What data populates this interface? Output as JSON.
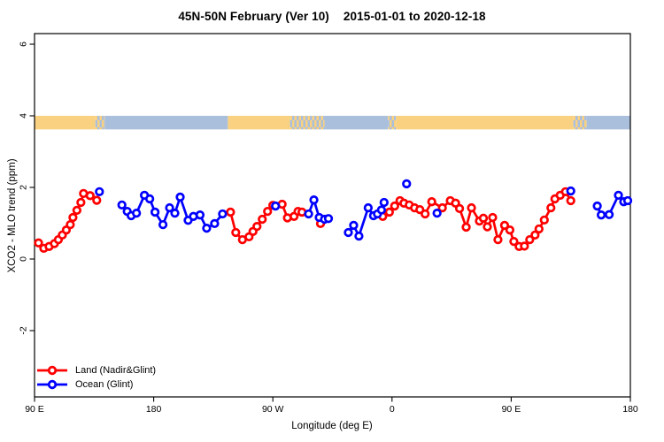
{
  "title": {
    "main": "45N-50N February (Ver 10)",
    "range": "2015-01-01 to 2020-12-18"
  },
  "legend": [
    {
      "label": "Land (Nadir&Glint)",
      "color": "#ff0000"
    },
    {
      "label": "Ocean (Glint)",
      "color": "#0000ff"
    }
  ],
  "chart_data": {
    "type": "line",
    "title": "45N-50N February (Ver 10)  2015-01-01 to 2020-12-18",
    "xlabel": "Longitude (deg E)",
    "ylabel": "XCO2 - MLO trend (ppm)",
    "marker_style": "open-circle",
    "grid": false,
    "x_axis": {
      "description": "longitude, starting at 90E and wrapping eastward around the globe to 180",
      "range_deg_from_90E": [
        0,
        450
      ],
      "ticks_deg_from_90E": [
        0,
        90,
        180,
        270,
        360,
        450
      ],
      "tick_labels": [
        "90 E",
        "180",
        "90 W",
        "0",
        "90 E",
        "180"
      ]
    },
    "y_axis": {
      "range": [
        -4.0,
        6.3
      ],
      "ticks": [
        -2,
        0,
        2,
        4,
        6
      ]
    },
    "map_band": {
      "description": "45N-50N land/ocean strip drawn near y=3.8 ppm",
      "y_top": 4.0,
      "y_bottom": 3.62,
      "land_color": "#f9d180",
      "ocean_color": "#aabfdc",
      "segments": [
        {
          "from": 0,
          "to": 46,
          "type": "land"
        },
        {
          "from": 46,
          "to": 53,
          "type": "mixed"
        },
        {
          "from": 53,
          "to": 146,
          "type": "ocean"
        },
        {
          "from": 146,
          "to": 193,
          "type": "land"
        },
        {
          "from": 193,
          "to": 219,
          "type": "mixed"
        },
        {
          "from": 219,
          "to": 267,
          "type": "ocean"
        },
        {
          "from": 267,
          "to": 273,
          "type": "mixed"
        },
        {
          "from": 273,
          "to": 407,
          "type": "land"
        },
        {
          "from": 407,
          "to": 417,
          "type": "mixed"
        },
        {
          "from": 417,
          "to": 450,
          "type": "ocean"
        }
      ]
    },
    "series": [
      {
        "name": "Land (Nadir&Glint)",
        "color": "#ff0000",
        "segments": [
          [
            [
              3,
              0.45
            ],
            [
              7,
              0.3
            ],
            [
              11,
              0.35
            ],
            [
              15,
              0.43
            ],
            [
              18,
              0.54
            ],
            [
              21,
              0.67
            ],
            [
              24,
              0.81
            ],
            [
              27,
              0.96
            ],
            [
              29,
              1.16
            ],
            [
              32,
              1.36
            ],
            [
              35,
              1.58
            ],
            [
              37,
              1.83
            ],
            [
              42,
              1.77
            ],
            [
              47,
              1.64
            ]
          ],
          [
            [
              148,
              1.31
            ],
            [
              152,
              0.74
            ],
            [
              157,
              0.54
            ],
            [
              162,
              0.62
            ],
            [
              165,
              0.77
            ],
            [
              168,
              0.91
            ],
            [
              172,
              1.11
            ],
            [
              176,
              1.33
            ],
            [
              180,
              1.5
            ],
            [
              187,
              1.53
            ],
            [
              191,
              1.15
            ],
            [
              196,
              1.19
            ],
            [
              199,
              1.33
            ],
            [
              202,
              1.31
            ]
          ],
          [
            [
              216,
              0.99
            ]
          ],
          [
            [
              263,
              1.19
            ],
            [
              268,
              1.31
            ],
            [
              272,
              1.48
            ],
            [
              276,
              1.63
            ],
            [
              279,
              1.56
            ],
            [
              283,
              1.51
            ],
            [
              287,
              1.43
            ],
            [
              291,
              1.38
            ],
            [
              295,
              1.26
            ],
            [
              300,
              1.6
            ],
            [
              308,
              1.43
            ],
            [
              314,
              1.63
            ],
            [
              318,
              1.56
            ],
            [
              321,
              1.41
            ],
            [
              326,
              0.89
            ],
            [
              330,
              1.43
            ],
            [
              336,
              1.06
            ],
            [
              339,
              1.14
            ],
            [
              342,
              0.9
            ],
            [
              346,
              1.16
            ],
            [
              350,
              0.54
            ],
            [
              355,
              0.94
            ],
            [
              359,
              0.81
            ],
            [
              362,
              0.49
            ],
            [
              366,
              0.35
            ],
            [
              370,
              0.36
            ],
            [
              374,
              0.54
            ],
            [
              378,
              0.67
            ],
            [
              381,
              0.84
            ],
            [
              385,
              1.09
            ],
            [
              390,
              1.43
            ],
            [
              393,
              1.68
            ],
            [
              397,
              1.78
            ],
            [
              401,
              1.88
            ],
            [
              405,
              1.63
            ]
          ]
        ]
      },
      {
        "name": "Ocean (Glint)",
        "color": "#0000ff",
        "segments": [
          [
            [
              49,
              1.88
            ]
          ],
          [
            [
              66,
              1.51
            ],
            [
              70,
              1.33
            ],
            [
              73,
              1.21
            ],
            [
              77,
              1.28
            ],
            [
              83,
              1.78
            ],
            [
              87,
              1.68
            ],
            [
              91,
              1.31
            ],
            [
              97,
              0.96
            ],
            [
              102,
              1.43
            ],
            [
              106,
              1.28
            ],
            [
              110,
              1.73
            ],
            [
              116,
              1.08
            ],
            [
              120,
              1.19
            ],
            [
              125,
              1.23
            ],
            [
              130,
              0.86
            ],
            [
              136,
              0.99
            ],
            [
              142,
              1.26
            ]
          ],
          [
            [
              182,
              1.48
            ]
          ],
          [
            [
              207,
              1.26
            ],
            [
              211,
              1.65
            ],
            [
              215,
              1.16
            ],
            [
              219,
              1.11
            ],
            [
              222,
              1.13
            ]
          ],
          [
            [
              237,
              0.74
            ],
            [
              241,
              0.94
            ],
            [
              245,
              0.64
            ],
            [
              252,
              1.43
            ],
            [
              256,
              1.21
            ],
            [
              259,
              1.26
            ],
            [
              262,
              1.37
            ],
            [
              264,
              1.58
            ]
          ],
          [
            [
              281,
              2.1
            ]
          ],
          [
            [
              304,
              1.28
            ]
          ],
          [
            [
              405,
              1.9
            ]
          ],
          [
            [
              425,
              1.48
            ],
            [
              428,
              1.23
            ],
            [
              434,
              1.24
            ],
            [
              441,
              1.78
            ],
            [
              445,
              1.6
            ],
            [
              448,
              1.63
            ]
          ]
        ]
      }
    ]
  }
}
